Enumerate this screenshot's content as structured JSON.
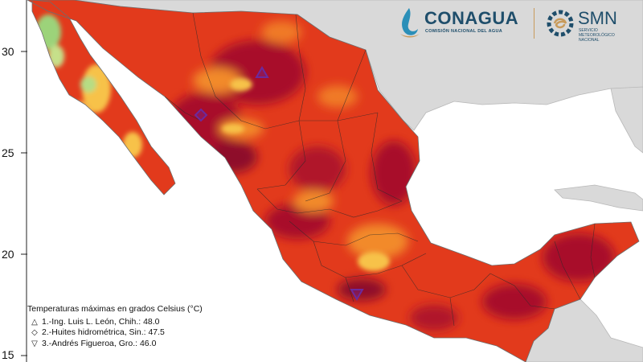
{
  "y_axis": {
    "ticks": [
      "30",
      "25",
      "20",
      "15"
    ]
  },
  "logos": {
    "conagua": {
      "name": "CONAGUA",
      "subtitle": "COMISIÓN NACIONAL DEL AGUA",
      "color": "#1f4e6b"
    },
    "smn": {
      "name": "SMN",
      "subtitle_lines": [
        "SERVICIO",
        "METEOROLÓGICO",
        "NACIONAL"
      ],
      "color": "#1f4e6b",
      "accent": "#c89b5c"
    }
  },
  "legend": {
    "title": "Temperaturas máximas en grados Celsius (°C)",
    "items": [
      {
        "symbol": "triangle-up",
        "text": "1.-Ing. Luis L. León, Chih.: 48.0"
      },
      {
        "symbol": "diamond",
        "text": "2.-Huites hidrométrica, Sin.: 47.5"
      },
      {
        "symbol": "triangle-down",
        "text": "3.-Andrés Figueroa, Gro.: 46.0"
      }
    ]
  },
  "colors": {
    "ocean": "#ffffff",
    "foreign_land": "#d9d9d9",
    "hot_base": "#e23a1c",
    "very_hot": "#a8102a",
    "warm": "#f28a2a",
    "mild": "#f7c24a",
    "cool": "#9cd37a",
    "marker": "#6b2a9e"
  }
}
